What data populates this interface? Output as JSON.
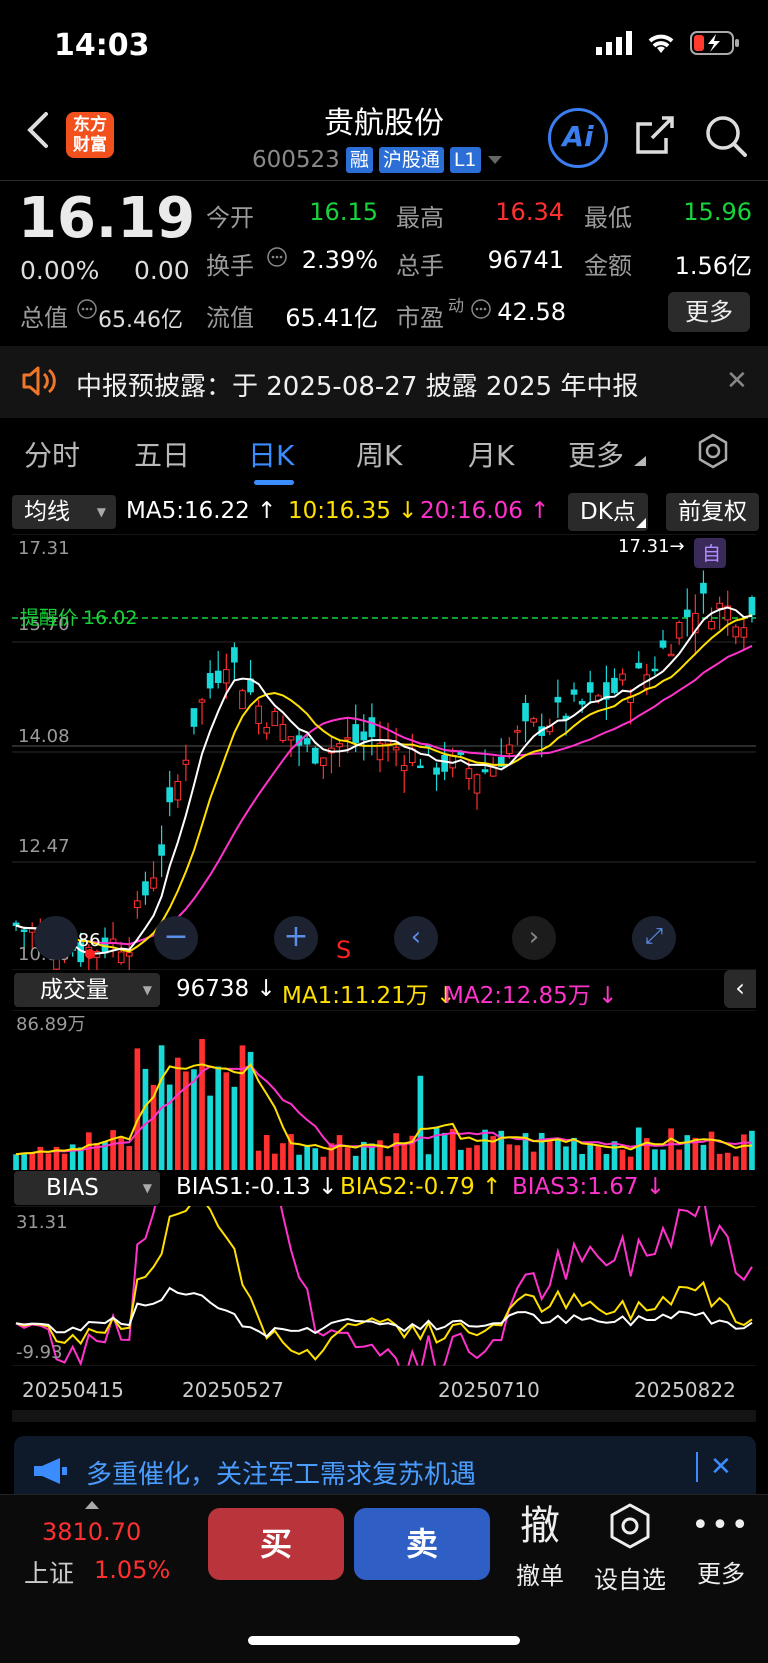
{
  "status": {
    "time": "14:03"
  },
  "header": {
    "logo_line1": "东方",
    "logo_line2": "财富",
    "name": "贵航股份",
    "code": "600523",
    "tags": [
      "融",
      "沪股通",
      "L1"
    ],
    "ai_label": "Ai"
  },
  "quote": {
    "price": "16.19",
    "change_pct": "0.00%",
    "change_abs": "0.00",
    "fields": [
      {
        "label": "今开",
        "value": "16.15",
        "color": "green"
      },
      {
        "label": "最高",
        "value": "16.34",
        "color": "red"
      },
      {
        "label": "最低",
        "value": "15.96",
        "color": "green"
      },
      {
        "label": "换手",
        "value": "2.39%",
        "color": "white"
      },
      {
        "label": "总手",
        "value": "96741",
        "color": "white"
      },
      {
        "label": "金额",
        "value": "1.56亿",
        "color": "white"
      },
      {
        "label": "流值",
        "value": "65.41亿",
        "color": "white"
      },
      {
        "label": "市盈",
        "value": "42.58",
        "color": "white"
      }
    ],
    "cap_label": "总值",
    "cap_value": "65.46亿",
    "pe_superscript": "动",
    "more_label": "更多"
  },
  "notice": {
    "text": "中报预披露：于 2025-08-27 披露 2025 年中报"
  },
  "tabs": [
    "分时",
    "五日",
    "日K",
    "周K",
    "月K",
    "更多"
  ],
  "kline": {
    "ma_selector": "均线",
    "ma5": "MA5:16.22",
    "ma10": "10:16.35",
    "ma20": "20:16.06",
    "dk_label": "DK点",
    "adjust_label": "前复权",
    "y_ticks": [
      "17.31",
      "15.70",
      "14.08",
      "12.47",
      "10.86"
    ],
    "max_marker": "17.31→",
    "min_marker": "←10.86",
    "alert_line": "提醒价 16.02",
    "zi_badge": "自",
    "s_marker": "S"
  },
  "volume": {
    "selector": "成交量",
    "current": "96738",
    "ma1": "MA1:11.21万",
    "ma2": "MA2:12.85万",
    "max_label": "86.89万"
  },
  "bias": {
    "selector": "BIAS",
    "bias1": "BIAS1:-0.13",
    "bias2": "BIAS2:-0.79",
    "bias3": "BIAS3:1.67",
    "top_label": "31.31",
    "bottom_label": "-9.93"
  },
  "x_axis": [
    "20250415",
    "20250527",
    "20250710",
    "20250822"
  ],
  "promo": {
    "text": "多重催化，关注军工需求复苏机遇"
  },
  "bottom": {
    "index_value": "3810.70",
    "index_name": "上证",
    "index_change": "1.05%",
    "buy": "买",
    "sell": "卖",
    "cancel_icon": "撤",
    "cancel": "撤单",
    "watch": "设自选",
    "more": "更多"
  },
  "colors": {
    "up": "#ff3030",
    "down": "#19d8d8",
    "ma5": "#ffffff",
    "ma10": "#ffe000",
    "ma20": "#ff33cc",
    "accent": "#3a8cff"
  }
}
